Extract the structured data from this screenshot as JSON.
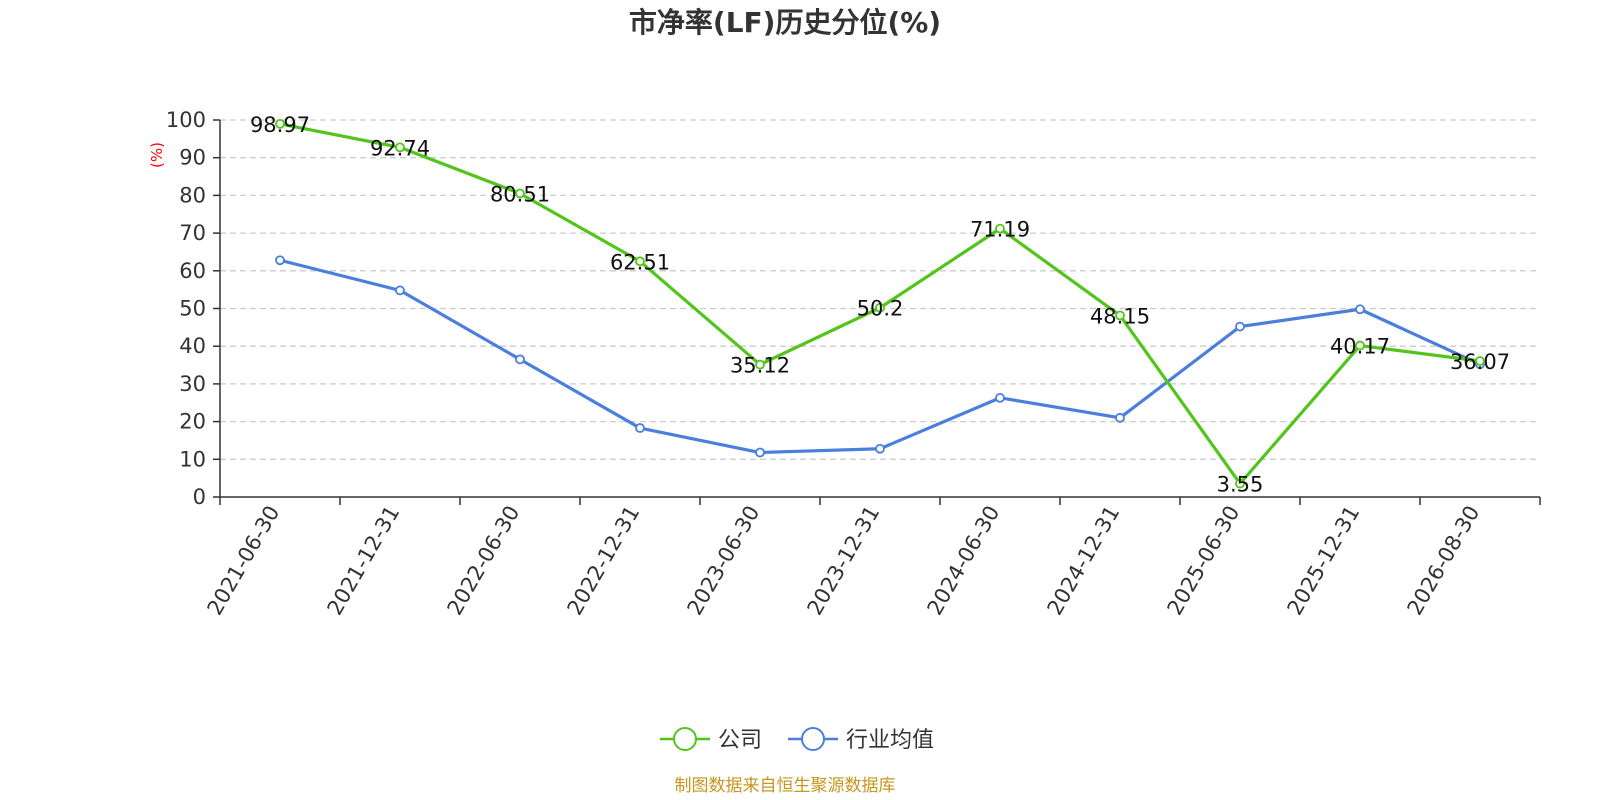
{
  "chart_data": {
    "type": "line",
    "title": "市净率(LF)历史分位(%)",
    "ylabel": "(%)",
    "ylim": [
      0,
      100
    ],
    "yticks": [
      0,
      10,
      20,
      30,
      40,
      50,
      60,
      70,
      80,
      90,
      100
    ],
    "grid": true,
    "legend_position": "bottom-center",
    "categories": [
      "2021-06-30",
      "2021-12-31",
      "2022-06-30",
      "2022-12-31",
      "2023-06-30",
      "2023-12-31",
      "2024-06-30",
      "2024-12-31",
      "2025-06-30",
      "2025-12-31",
      "2026-08-30"
    ],
    "series": [
      {
        "name": "公司",
        "color": "#52c41a",
        "values": [
          98.97,
          92.74,
          80.51,
          62.51,
          35.12,
          50.2,
          71.19,
          48.15,
          3.55,
          40.17,
          36.07
        ],
        "labels": [
          "98.97",
          "92.74",
          "80.51",
          "62.51",
          "35.12",
          "50.2",
          "71.19",
          "48.15",
          "3.55",
          "40.17",
          "36.07"
        ]
      },
      {
        "name": "行业均值",
        "color": "#4a7fde",
        "values": [
          62.8,
          54.8,
          36.5,
          18.3,
          11.8,
          12.8,
          26.3,
          21.0,
          45.2,
          49.8,
          35.2
        ]
      }
    ]
  },
  "source_note": "制图数据来自恒生聚源数据库"
}
